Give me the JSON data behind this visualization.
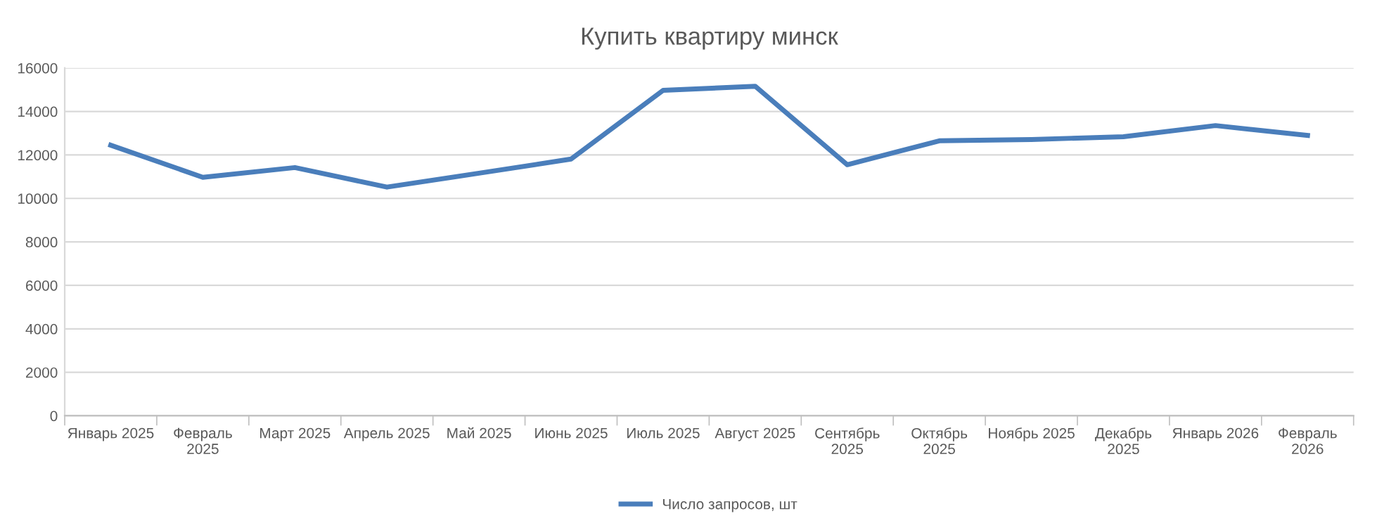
{
  "chart_data": {
    "type": "line",
    "title": "Купить квартиру минск",
    "categories": [
      "Январь 2025",
      "Февраль\n2025",
      "Март 2025",
      "Апрель 2025",
      "Май 2025",
      "Июнь 2025",
      "Июль 2025",
      "Август 2025",
      "Сентябрь\n2025",
      "Октябрь\n2025",
      "Ноябрь 2025",
      "Декабрь\n2025",
      "Январь 2026",
      "Февраль\n2026"
    ],
    "series": [
      {
        "name": "Число запросов, шт",
        "color": "#4a7ebb",
        "values": [
          12450,
          10970,
          11420,
          10520,
          11160,
          11810,
          14970,
          15160,
          11550,
          12650,
          12710,
          12840,
          13350,
          12900
        ]
      }
    ],
    "ylim": [
      0,
      16000
    ],
    "yticks": [
      0,
      2000,
      4000,
      6000,
      8000,
      10000,
      12000,
      14000,
      16000
    ],
    "grid": "y",
    "legend": "bottom",
    "marker": "none",
    "line_style": "solid"
  }
}
